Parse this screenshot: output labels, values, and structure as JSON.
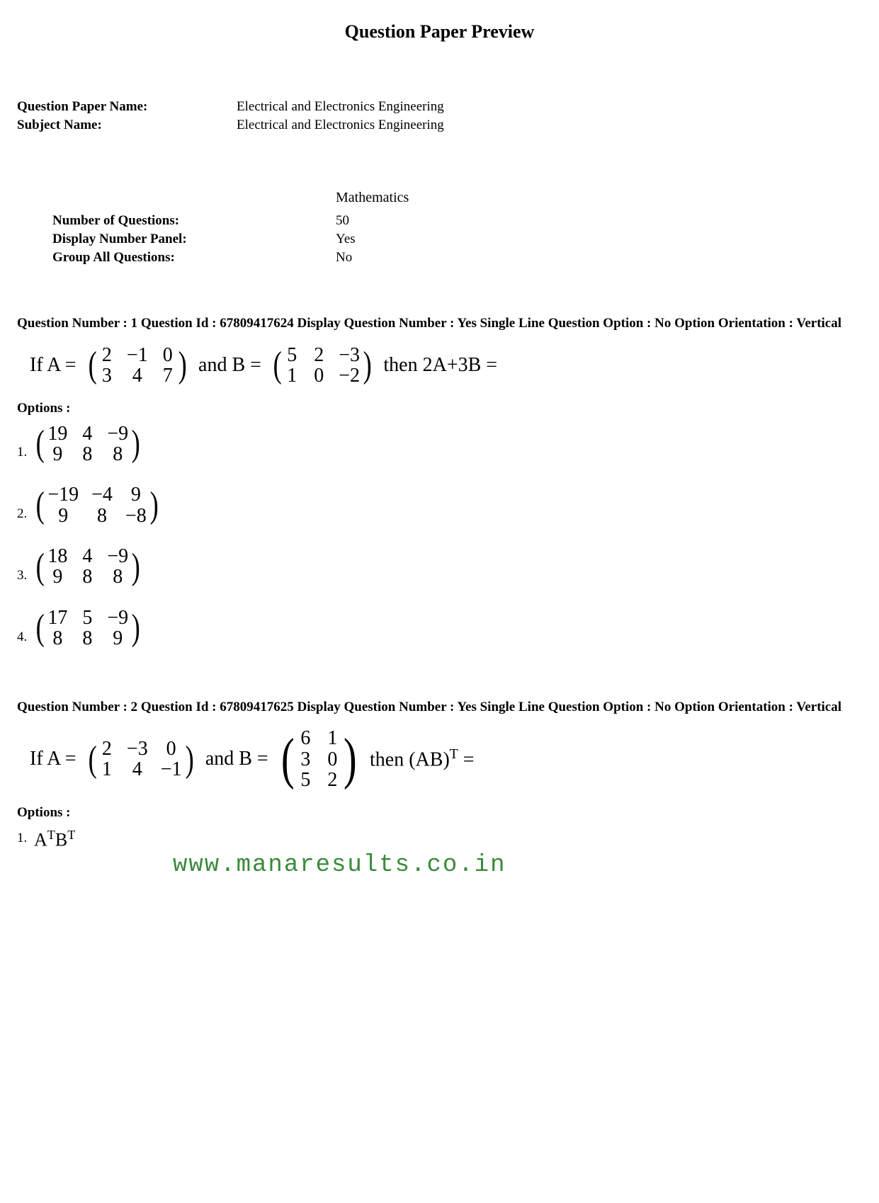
{
  "page_title": "Question Paper Preview",
  "meta": {
    "paper_name_label": "Question Paper Name:",
    "paper_name_value": "Electrical and Electronics Engineering",
    "subject_name_label": "Subject Name:",
    "subject_name_value": "Electrical and Electronics Engineering"
  },
  "section": {
    "subject": "Mathematics",
    "num_questions_label": "Number of Questions:",
    "num_questions_value": "50",
    "display_panel_label": "Display Number Panel:",
    "display_panel_value": "Yes",
    "group_all_label": "Group All Questions:",
    "group_all_value": "No"
  },
  "q1": {
    "header": "Question Number : 1  Question Id : 67809417624  Display Question Number : Yes  Single Line Question Option : No  Option Orientation : Vertical",
    "prefix": "If A =",
    "matrixA": [
      [
        "2",
        "3"
      ],
      [
        "−1",
        "4"
      ],
      [
        "0",
        "7"
      ]
    ],
    "mid": "and   B =",
    "matrixB": [
      [
        "5",
        "1"
      ],
      [
        "2",
        "0"
      ],
      [
        "−3",
        "−2"
      ]
    ],
    "suffix": "then   2A+3B =",
    "options_label": "Options :",
    "options": [
      {
        "num": "1.",
        "matrix": [
          [
            "19",
            "9"
          ],
          [
            "4",
            "8"
          ],
          [
            "−9",
            "8"
          ]
        ]
      },
      {
        "num": "2.",
        "matrix": [
          [
            "−19",
            "9"
          ],
          [
            "−4",
            "8"
          ],
          [
            "9",
            "−8"
          ]
        ]
      },
      {
        "num": "3.",
        "matrix": [
          [
            "18",
            "9"
          ],
          [
            "4",
            "8"
          ],
          [
            "−9",
            "8"
          ]
        ]
      },
      {
        "num": "4.",
        "matrix": [
          [
            "17",
            "8"
          ],
          [
            "5",
            "8"
          ],
          [
            "−9",
            "9"
          ]
        ]
      }
    ]
  },
  "q2": {
    "header": "Question Number : 2  Question Id : 67809417625  Display Question Number : Yes  Single Line Question Option : No  Option Orientation : Vertical",
    "prefix": "If  A =",
    "matrixA": [
      [
        "2",
        "1"
      ],
      [
        "−3",
        "4"
      ],
      [
        "0",
        "−1"
      ]
    ],
    "mid": "and  B =",
    "matrixB": [
      [
        "6",
        "3",
        "5"
      ],
      [
        "1",
        "0",
        "2"
      ]
    ],
    "suffix1": "then (AB)",
    "suffix_sup": "T",
    "suffix2": "   =",
    "options_label": "Options :",
    "opt1_num": "1.",
    "opt1_expr_a": "A",
    "opt1_expr_b": "B"
  },
  "watermark": "www.manaresults.co.in",
  "colors": {
    "text": "#000000",
    "background": "#ffffff",
    "watermark": "#3a8a3a"
  }
}
